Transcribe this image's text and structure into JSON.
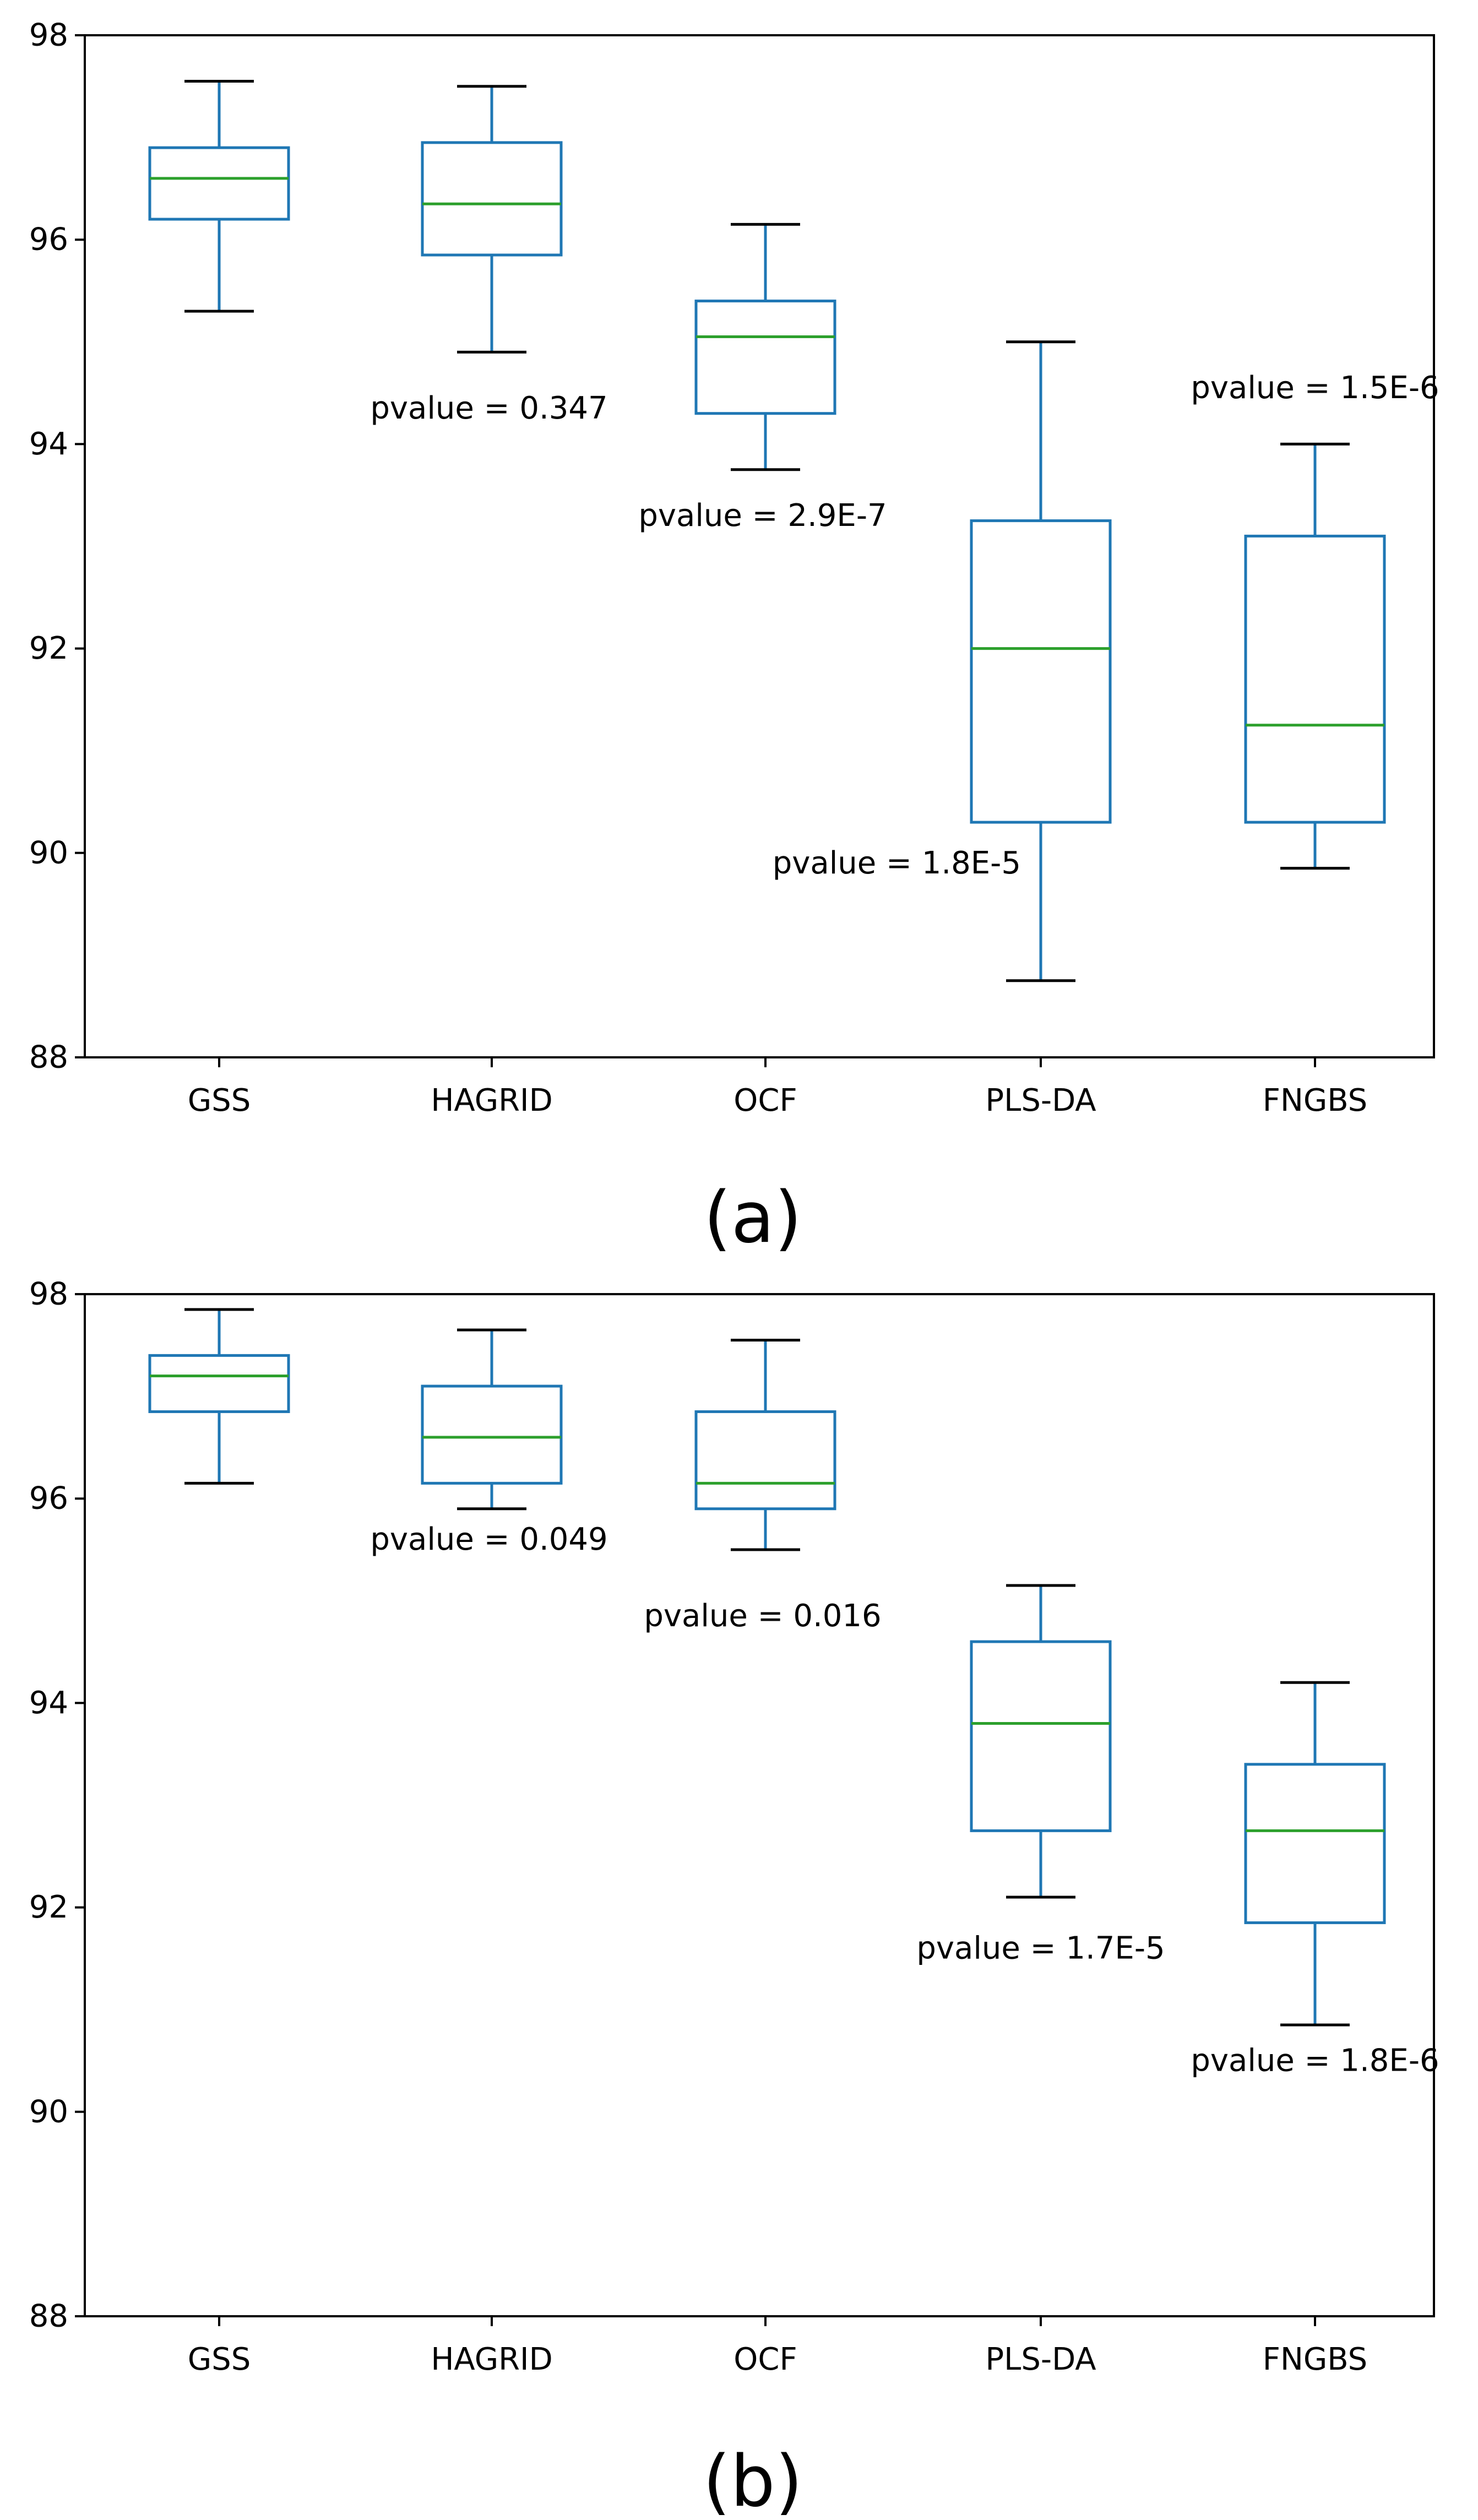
{
  "chart_data": [
    {
      "type": "box",
      "categories": [
        "GSS",
        "HAGRID",
        "OCF",
        "PLS-DA",
        "FNGBS"
      ],
      "ylim": [
        88,
        98
      ],
      "yticks": [
        "88",
        "90",
        "92",
        "94",
        "96",
        "98"
      ],
      "grid": false,
      "caption": "(a)",
      "series": [
        {
          "min": 95.3,
          "q1": 96.2,
          "median": 96.6,
          "q3": 96.9,
          "max": 97.55
        },
        {
          "min": 94.9,
          "q1": 95.85,
          "median": 96.35,
          "q3": 96.95,
          "max": 97.5
        },
        {
          "min": 93.75,
          "q1": 94.3,
          "median": 95.05,
          "q3": 95.4,
          "max": 96.15
        },
        {
          "min": 88.75,
          "q1": 90.3,
          "median": 92.0,
          "q3": 93.25,
          "max": 95.0
        },
        {
          "min": 89.85,
          "q1": 90.3,
          "median": 91.25,
          "q3": 93.1,
          "max": 94.0
        }
      ],
      "annotations": [
        {
          "text": "pvalue = 0.347",
          "category": "HAGRID",
          "y": 94.35,
          "anchor": "middle"
        },
        {
          "text": "pvalue = 2.9E-7",
          "category": "OCF",
          "y": 93.3,
          "anchor": "middle"
        },
        {
          "text": "pvalue = 1.8E-5",
          "category": "PLS-DA",
          "y": 89.9,
          "anchor": "end"
        },
        {
          "text": "pvalue = 1.5E-6",
          "category": "FNGBS",
          "y": 94.55,
          "anchor": "middle"
        }
      ]
    },
    {
      "type": "box",
      "categories": [
        "GSS",
        "HAGRID",
        "OCF",
        "PLS-DA",
        "FNGBS"
      ],
      "ylim": [
        88,
        98
      ],
      "yticks": [
        "88",
        "90",
        "92",
        "94",
        "96",
        "98"
      ],
      "grid": false,
      "caption": "(b)",
      "series": [
        {
          "min": 96.15,
          "q1": 96.85,
          "median": 97.2,
          "q3": 97.4,
          "max": 97.85
        },
        {
          "min": 95.9,
          "q1": 96.15,
          "median": 96.6,
          "q3": 97.1,
          "max": 97.65
        },
        {
          "min": 95.5,
          "q1": 95.9,
          "median": 96.15,
          "q3": 96.85,
          "max": 97.55
        },
        {
          "min": 92.1,
          "q1": 92.75,
          "median": 93.8,
          "q3": 94.6,
          "max": 95.15
        },
        {
          "min": 90.85,
          "q1": 91.85,
          "median": 92.75,
          "q3": 93.4,
          "max": 94.2
        }
      ],
      "annotations": [
        {
          "text": "pvalue = 0.049",
          "category": "HAGRID",
          "y": 95.6,
          "anchor": "middle"
        },
        {
          "text": "pvalue = 0.016",
          "category": "OCF",
          "y": 94.85,
          "anchor": "middle"
        },
        {
          "text": "pvalue = 1.7E-5",
          "category": "PLS-DA",
          "y": 91.6,
          "anchor": "middle"
        },
        {
          "text": "pvalue = 1.8E-6",
          "category": "FNGBS",
          "y": 90.5,
          "anchor": "middle"
        }
      ]
    }
  ],
  "colors": {
    "box": "#1f77b4",
    "median": "#2ca02c",
    "cap": "#000000",
    "axes": "#000000"
  }
}
